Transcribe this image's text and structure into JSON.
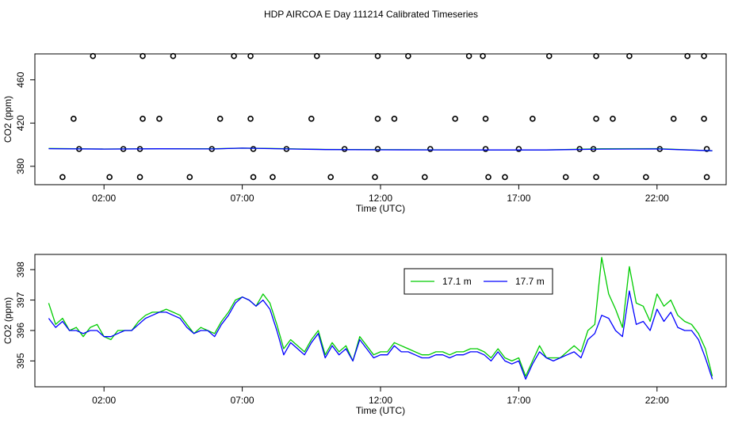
{
  "figure": {
    "title": "HDP AIRCOA E  Day 111214  Calibrated Timeseries"
  },
  "chart_data": [
    {
      "type": "scatter",
      "xlabel": "Time (UTC)",
      "ylabel": "CO2 (ppm)",
      "xlim": [
        -0.5,
        24.5
      ],
      "ylim": [
        363,
        484
      ],
      "x_ticks": [
        2,
        7,
        12,
        17,
        22
      ],
      "x_tick_labels": [
        "02:00",
        "07:00",
        "12:00",
        "17:00",
        "22:00"
      ],
      "y_ticks": [
        380,
        420,
        460
      ],
      "y_tick_labels": [
        "380",
        "420",
        "460"
      ],
      "grid": false,
      "series": [
        {
          "color": "#000000",
          "marker": "open-circle",
          "points": [
            [
              1.6,
              482
            ],
            [
              3.4,
              482
            ],
            [
              4.5,
              482
            ],
            [
              6.7,
              482
            ],
            [
              7.3,
              482
            ],
            [
              9.7,
              482
            ],
            [
              11.9,
              482
            ],
            [
              13.0,
              482
            ],
            [
              15.2,
              482
            ],
            [
              15.7,
              482
            ],
            [
              18.1,
              482
            ],
            [
              19.8,
              482
            ],
            [
              21.0,
              482
            ],
            [
              23.1,
              482
            ],
            [
              23.7,
              482
            ],
            [
              0.9,
              424
            ],
            [
              3.4,
              424
            ],
            [
              4.0,
              424
            ],
            [
              6.2,
              424
            ],
            [
              7.3,
              424
            ],
            [
              9.5,
              424
            ],
            [
              11.9,
              424
            ],
            [
              12.5,
              424
            ],
            [
              14.7,
              424
            ],
            [
              15.8,
              424
            ],
            [
              17.5,
              424
            ],
            [
              19.8,
              424
            ],
            [
              20.4,
              424
            ],
            [
              22.6,
              424
            ],
            [
              23.7,
              424
            ],
            [
              1.1,
              396
            ],
            [
              2.7,
              396
            ],
            [
              3.3,
              396
            ],
            [
              5.9,
              396
            ],
            [
              7.4,
              396
            ],
            [
              8.6,
              396
            ],
            [
              10.7,
              396
            ],
            [
              11.9,
              396
            ],
            [
              13.8,
              396
            ],
            [
              15.8,
              396
            ],
            [
              17.0,
              396
            ],
            [
              19.2,
              396
            ],
            [
              19.7,
              396
            ],
            [
              22.1,
              396
            ],
            [
              23.8,
              396
            ],
            [
              0.5,
              370
            ],
            [
              2.2,
              370
            ],
            [
              3.3,
              370
            ],
            [
              5.1,
              370
            ],
            [
              7.4,
              370
            ],
            [
              8.1,
              370
            ],
            [
              10.2,
              370
            ],
            [
              11.8,
              370
            ],
            [
              13.6,
              370
            ],
            [
              15.9,
              370
            ],
            [
              16.5,
              370
            ],
            [
              18.7,
              370
            ],
            [
              19.8,
              370
            ],
            [
              21.6,
              370
            ],
            [
              23.8,
              370
            ]
          ]
        },
        {
          "color": "#00cc00",
          "marker": "line",
          "x": [
            0,
            2,
            4,
            6,
            7,
            8,
            10,
            12,
            14,
            16,
            18,
            20,
            22,
            24
          ],
          "y": [
            396.5,
            396.0,
            396.3,
            396.2,
            396.8,
            396.5,
            395.6,
            395.4,
            395.3,
            395.2,
            395.2,
            396.3,
            396.4,
            394.4
          ]
        },
        {
          "color": "#0000ff",
          "marker": "line",
          "x": [
            0,
            2,
            4,
            6,
            7,
            8,
            10,
            12,
            14,
            16,
            18,
            20,
            22,
            24
          ],
          "y": [
            396.3,
            395.9,
            396.2,
            396.1,
            396.8,
            396.4,
            395.5,
            395.3,
            395.2,
            395.1,
            395.1,
            395.9,
            396.1,
            394.4
          ]
        }
      ]
    },
    {
      "type": "line",
      "xlabel": "Time (UTC)",
      "ylabel": "CO2 (ppm)",
      "xlim": [
        -0.5,
        24.5
      ],
      "ylim": [
        394.15,
        398.5
      ],
      "x_ticks": [
        2,
        7,
        12,
        17,
        22
      ],
      "x_tick_labels": [
        "02:00",
        "07:00",
        "12:00",
        "17:00",
        "22:00"
      ],
      "y_ticks": [
        395,
        396,
        397,
        398
      ],
      "y_tick_labels": [
        "395",
        "396",
        "397",
        "398"
      ],
      "grid": false,
      "legend_position": "top-center",
      "series": [
        {
          "name": "17.1 m",
          "color": "#00cc00",
          "x": [
            0.0,
            0.25,
            0.5,
            0.75,
            1.0,
            1.25,
            1.5,
            1.75,
            2.0,
            2.25,
            2.5,
            2.75,
            3.0,
            3.25,
            3.5,
            3.75,
            4.0,
            4.25,
            4.5,
            4.75,
            5.0,
            5.25,
            5.5,
            5.75,
            6.0,
            6.25,
            6.5,
            6.75,
            7.0,
            7.25,
            7.5,
            7.75,
            8.0,
            8.25,
            8.5,
            8.75,
            9.0,
            9.25,
            9.5,
            9.75,
            10.0,
            10.25,
            10.5,
            10.75,
            11.0,
            11.25,
            11.5,
            11.75,
            12.0,
            12.25,
            12.5,
            12.75,
            13.0,
            13.25,
            13.5,
            13.75,
            14.0,
            14.25,
            14.5,
            14.75,
            15.0,
            15.25,
            15.5,
            15.75,
            16.0,
            16.25,
            16.5,
            16.75,
            17.0,
            17.25,
            17.5,
            17.75,
            18.0,
            18.25,
            18.5,
            18.75,
            19.0,
            19.25,
            19.5,
            19.75,
            20.0,
            20.25,
            20.5,
            20.75,
            21.0,
            21.25,
            21.5,
            21.75,
            22.0,
            22.25,
            22.5,
            22.75,
            23.0,
            23.25,
            23.5,
            23.75,
            24.0
          ],
          "values": [
            396.9,
            396.2,
            396.4,
            396.0,
            396.1,
            395.8,
            396.1,
            396.2,
            395.8,
            395.7,
            396.0,
            396.0,
            396.0,
            396.3,
            396.5,
            396.6,
            396.6,
            396.7,
            396.6,
            396.5,
            396.2,
            395.9,
            396.1,
            396.0,
            395.9,
            396.3,
            396.6,
            397.0,
            397.1,
            397.0,
            396.8,
            397.2,
            396.9,
            396.2,
            395.4,
            395.7,
            395.5,
            395.3,
            395.7,
            396.0,
            395.2,
            395.6,
            395.3,
            395.5,
            395.0,
            395.8,
            395.5,
            395.2,
            395.3,
            395.3,
            395.6,
            395.5,
            395.4,
            395.3,
            395.2,
            395.2,
            395.3,
            395.3,
            395.2,
            395.3,
            395.3,
            395.4,
            395.4,
            395.3,
            395.1,
            395.4,
            395.1,
            395.0,
            395.1,
            394.5,
            395.0,
            395.5,
            395.1,
            395.1,
            395.1,
            395.3,
            395.5,
            395.3,
            396.0,
            396.2,
            398.4,
            397.2,
            396.7,
            396.1,
            398.1,
            396.9,
            396.8,
            396.3,
            397.2,
            396.8,
            397.0,
            396.5,
            396.3,
            396.2,
            395.9,
            395.4,
            394.5
          ]
        },
        {
          "name": "17.7 m",
          "color": "#0000ff",
          "x": [
            0.0,
            0.25,
            0.5,
            0.75,
            1.0,
            1.25,
            1.5,
            1.75,
            2.0,
            2.25,
            2.5,
            2.75,
            3.0,
            3.25,
            3.5,
            3.75,
            4.0,
            4.25,
            4.5,
            4.75,
            5.0,
            5.25,
            5.5,
            5.75,
            6.0,
            6.25,
            6.5,
            6.75,
            7.0,
            7.25,
            7.5,
            7.75,
            8.0,
            8.25,
            8.5,
            8.75,
            9.0,
            9.25,
            9.5,
            9.75,
            10.0,
            10.25,
            10.5,
            10.75,
            11.0,
            11.25,
            11.5,
            11.75,
            12.0,
            12.25,
            12.5,
            12.75,
            13.0,
            13.25,
            13.5,
            13.75,
            14.0,
            14.25,
            14.5,
            14.75,
            15.0,
            15.25,
            15.5,
            15.75,
            16.0,
            16.25,
            16.5,
            16.75,
            17.0,
            17.25,
            17.5,
            17.75,
            18.0,
            18.25,
            18.5,
            18.75,
            19.0,
            19.25,
            19.5,
            19.75,
            20.0,
            20.25,
            20.5,
            20.75,
            21.0,
            21.25,
            21.5,
            21.75,
            22.0,
            22.25,
            22.5,
            22.75,
            23.0,
            23.25,
            23.5,
            23.75,
            24.0
          ],
          "values": [
            396.4,
            396.1,
            396.3,
            396.0,
            396.0,
            395.9,
            396.0,
            396.0,
            395.8,
            395.8,
            395.9,
            396.0,
            396.0,
            396.2,
            396.4,
            396.5,
            396.6,
            396.6,
            396.5,
            396.4,
            396.1,
            395.9,
            396.0,
            396.0,
            395.8,
            396.2,
            396.5,
            396.9,
            397.1,
            397.0,
            396.8,
            397.0,
            396.7,
            396.0,
            395.2,
            395.6,
            395.4,
            395.2,
            395.6,
            395.9,
            395.1,
            395.5,
            395.2,
            395.4,
            395.0,
            395.7,
            395.4,
            395.1,
            395.2,
            395.2,
            395.5,
            395.3,
            395.3,
            395.2,
            395.1,
            395.1,
            395.2,
            395.2,
            395.1,
            395.2,
            395.2,
            395.3,
            395.3,
            395.2,
            395.0,
            395.3,
            395.0,
            394.9,
            395.0,
            394.4,
            394.9,
            395.3,
            395.1,
            395.0,
            395.1,
            395.2,
            395.3,
            395.1,
            395.7,
            395.9,
            396.5,
            396.4,
            396.0,
            395.8,
            397.3,
            396.2,
            396.3,
            396.0,
            396.7,
            396.3,
            396.6,
            396.1,
            396.0,
            396.0,
            395.7,
            395.1,
            394.4
          ]
        }
      ]
    }
  ]
}
